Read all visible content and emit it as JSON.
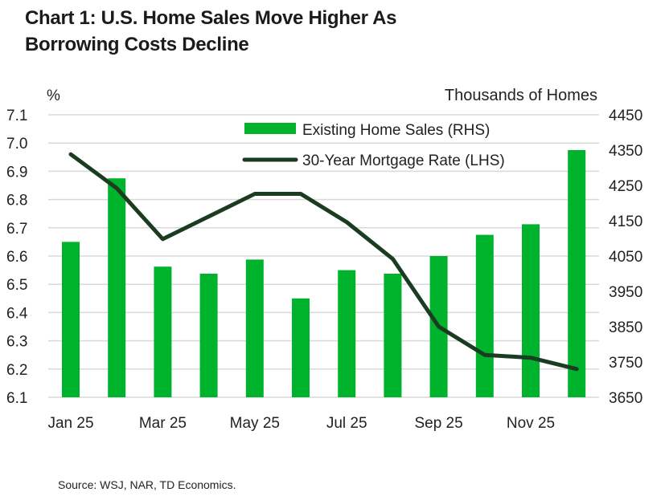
{
  "title_line1": "Chart 1: U.S. Home Sales Move Higher As",
  "title_line2": "Borrowing Costs Decline",
  "source": "Source: WSJ, NAR, TD Economics.",
  "colors": {
    "bars": "#00b32c",
    "line": "#1a3d22",
    "grid": "#d9d9d9"
  },
  "chart_data": {
    "type": "bar+line",
    "title": "Chart 1: U.S. Home Sales Move Higher As Borrowing Costs Decline",
    "categories": [
      "Jan 25",
      "Feb 25",
      "Mar 25",
      "Apr 25",
      "May 25",
      "Jun 25",
      "Jul 25",
      "Aug 25",
      "Sep 25",
      "Oct 25",
      "Nov 25",
      "Dec 25"
    ],
    "x_tick_labels": [
      "Jan 25",
      "",
      "Mar 25",
      "",
      "May 25",
      "",
      "Jul 25",
      "",
      "Sep 25",
      "",
      "Nov 25",
      ""
    ],
    "ylabel_left": "%",
    "ylabel_right": "Thousands of Homes",
    "ylim_left": [
      6.1,
      7.1
    ],
    "ylim_right": [
      3650,
      4450
    ],
    "left_ticks": [
      "6.1",
      "6.2",
      "6.3",
      "6.4",
      "6.5",
      "6.6",
      "6.7",
      "6.8",
      "6.9",
      "7.0",
      "7.1"
    ],
    "right_ticks": [
      "3650",
      "3750",
      "3850",
      "3950",
      "4050",
      "4150",
      "4250",
      "4350",
      "4450"
    ],
    "grid": true,
    "legend_position": "top-right",
    "series": [
      {
        "name": "Existing Home Sales (RHS)",
        "type": "bar",
        "axis": "right",
        "values": [
          4090,
          4270,
          4020,
          4000,
          4040,
          3930,
          4010,
          4000,
          4050,
          4110,
          4140,
          4350
        ]
      },
      {
        "name": "30-Year Mortgage Rate (LHS)",
        "type": "line",
        "axis": "left",
        "values": [
          6.96,
          6.84,
          6.66,
          6.74,
          6.82,
          6.82,
          6.72,
          6.59,
          6.35,
          6.25,
          6.24,
          6.2
        ]
      }
    ]
  }
}
